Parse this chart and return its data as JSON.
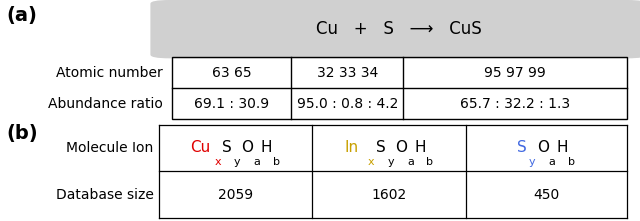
{
  "panel_a_label": "(a)",
  "panel_b_label": "(b)",
  "header_text": "Cu   +   S   ⟶   CuS",
  "header_bg": "#d0d0d0",
  "table_a_rows": [
    "Atomic number",
    "Abundance ratio"
  ],
  "table_a_col1": [
    "63 65",
    "69.1 : 30.9"
  ],
  "table_a_col2": [
    "32 33 34",
    "95.0 : 0.8 : 4.2"
  ],
  "table_a_col3": [
    "95 97 99",
    "65.7 : 32.2 : 1.3"
  ],
  "table_b_row1_label": "Molecule Ion",
  "table_b_row2_label": "Database size",
  "db_size_1": "2059",
  "db_size_2": "1602",
  "db_size_3": "450",
  "color_cu": "#e00000",
  "color_in": "#c8a000",
  "color_s": "#4169e1",
  "bg_color": "#ffffff",
  "font_size": 11,
  "mol_ion_1_parts": [
    [
      "Cu",
      "x",
      "S",
      "y",
      "O",
      "a",
      "H",
      "b"
    ],
    [
      "#e00000",
      "#e00000",
      "#000000",
      "#000000",
      "#000000",
      "#000000",
      "#000000",
      "#000000"
    ]
  ],
  "mol_ion_2_parts": [
    [
      "In",
      "x",
      "S",
      "y",
      "O",
      "a",
      "H",
      "b"
    ],
    [
      "#c8a000",
      "#c8a000",
      "#000000",
      "#000000",
      "#000000",
      "#000000",
      "#000000",
      "#000000"
    ]
  ],
  "mol_ion_3_parts": [
    [
      "S",
      "y",
      "O",
      "a",
      "H",
      "b"
    ],
    [
      "#4169e1",
      "#4169e1",
      "#000000",
      "#000000",
      "#000000",
      "#000000"
    ]
  ]
}
